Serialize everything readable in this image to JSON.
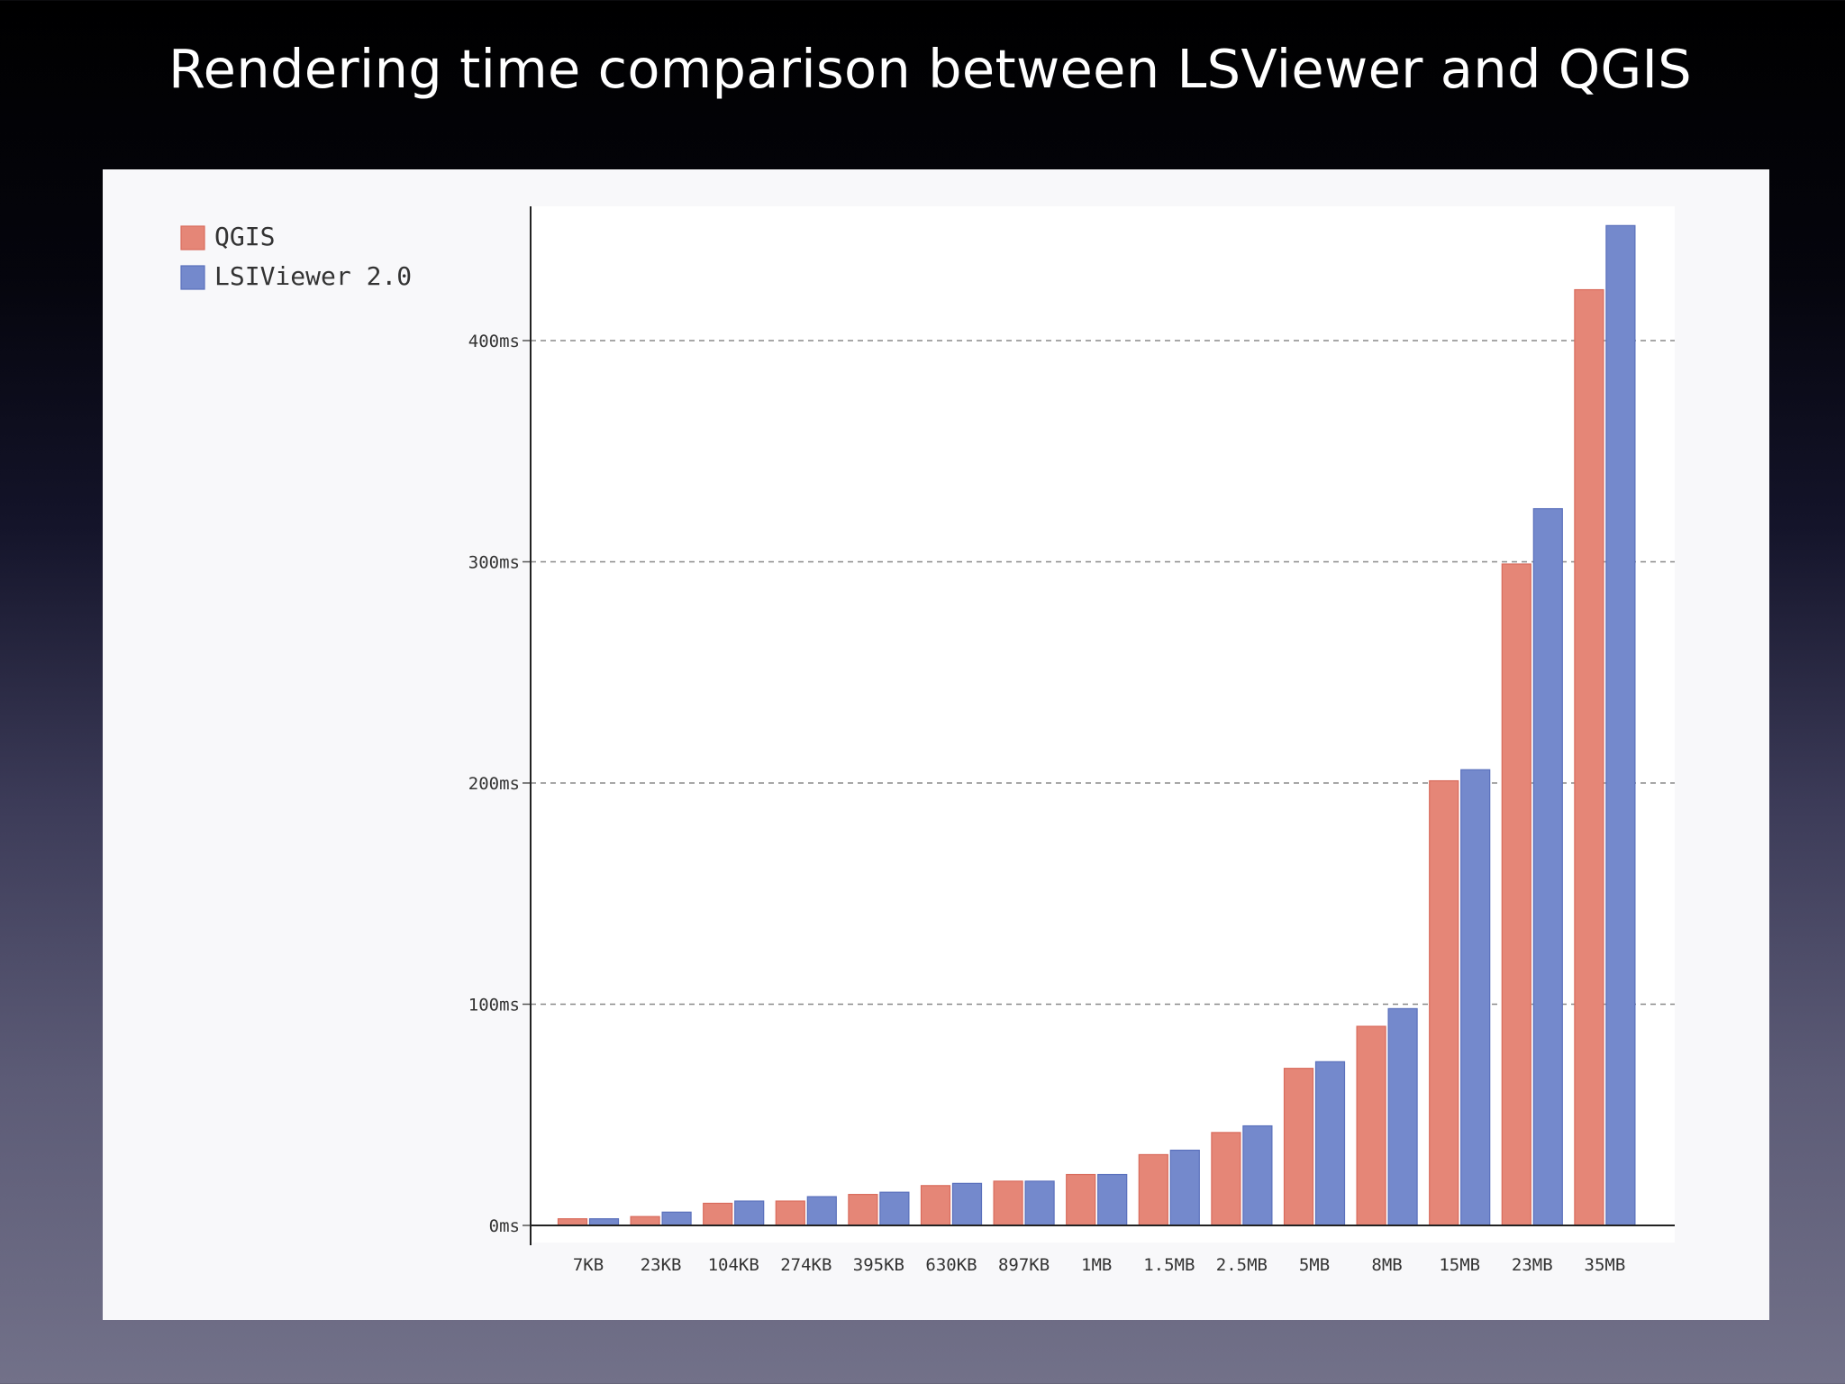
{
  "slide": {
    "title": "Rendering time comparison between LSViewer and QGIS"
  },
  "colors": {
    "qgis": "#e58677",
    "lsiviewer": "#7489cc",
    "qgis_stroke": "#d96b5c",
    "lsiviewer_stroke": "#5a70bc"
  },
  "chart_data": {
    "type": "bar",
    "categories": [
      "7KB",
      "23KB",
      "104KB",
      "274KB",
      "395KB",
      "630KB",
      "897KB",
      "1MB",
      "1.5MB",
      "2.5MB",
      "5MB",
      "8MB",
      "15MB",
      "23MB",
      "35MB"
    ],
    "series": [
      {
        "name": "QGIS",
        "values": [
          3,
          4,
          10,
          11,
          14,
          18,
          20,
          23,
          32,
          42,
          71,
          90,
          201,
          299,
          423
        ]
      },
      {
        "name": "LSIViewer 2.0",
        "values": [
          3,
          6,
          11,
          13,
          15,
          19,
          20,
          23,
          34,
          45,
          74,
          98,
          206,
          324,
          452
        ]
      }
    ],
    "yticks": [
      0,
      100,
      200,
      300,
      400
    ],
    "ytick_labels": [
      "0ms",
      "100ms",
      "200ms",
      "300ms",
      "400ms"
    ],
    "ylim": [
      0,
      460
    ],
    "grid": "horizontal dashed",
    "legend_position": "top-left",
    "title": "",
    "xlabel": "",
    "ylabel": ""
  }
}
